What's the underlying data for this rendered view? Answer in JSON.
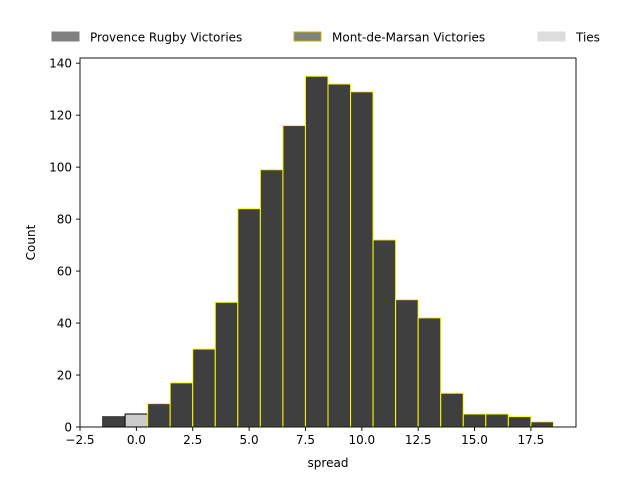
{
  "chart_data": {
    "type": "bar",
    "title": "",
    "xlabel": "spread",
    "ylabel": "Count",
    "xlim": [
      -2.5,
      19.5
    ],
    "ylim": [
      0,
      142
    ],
    "xticks": [
      -2.5,
      0.0,
      2.5,
      5.0,
      7.5,
      10.0,
      12.5,
      15.0,
      17.5
    ],
    "xtick_labels": [
      "−2.5",
      "0.0",
      "2.5",
      "5.0",
      "7.5",
      "10.0",
      "12.5",
      "15.0",
      "17.5"
    ],
    "yticks": [
      0,
      20,
      40,
      60,
      80,
      100,
      120,
      140
    ],
    "ytick_labels": [
      "0",
      "20",
      "40",
      "60",
      "80",
      "100",
      "120",
      "140"
    ],
    "bin_width": 1,
    "grid": false,
    "legend_position": "top (above plot)",
    "series": [
      {
        "name": "Provence Rugby Victories",
        "fill": "#3f3f3f",
        "edge": "#444444",
        "legend_fill": "#808080",
        "legend_edge": "#808080",
        "bins": [
          {
            "start": -1.5,
            "count": 4
          }
        ]
      },
      {
        "name": "Ties",
        "fill": "#cccccc",
        "edge": "#000000",
        "legend_fill": "#dddddd",
        "legend_edge": "#dddddd",
        "bins": [
          {
            "start": -0.5,
            "count": 5
          }
        ]
      },
      {
        "name": "Mont-de-Marsan Victories",
        "fill": "#3f3f3f",
        "edge": "#ffff00",
        "legend_fill": "#808080",
        "legend_edge": "#b8b800",
        "bins": [
          {
            "start": 0.5,
            "count": 9
          },
          {
            "start": 1.5,
            "count": 17
          },
          {
            "start": 2.5,
            "count": 30
          },
          {
            "start": 3.5,
            "count": 48
          },
          {
            "start": 4.5,
            "count": 84
          },
          {
            "start": 5.5,
            "count": 99
          },
          {
            "start": 6.5,
            "count": 116
          },
          {
            "start": 7.5,
            "count": 135
          },
          {
            "start": 8.5,
            "count": 132
          },
          {
            "start": 9.5,
            "count": 129
          },
          {
            "start": 10.5,
            "count": 72
          },
          {
            "start": 11.5,
            "count": 49
          },
          {
            "start": 12.5,
            "count": 42
          },
          {
            "start": 13.5,
            "count": 13
          },
          {
            "start": 14.5,
            "count": 5
          },
          {
            "start": 15.5,
            "count": 5
          },
          {
            "start": 16.5,
            "count": 4
          },
          {
            "start": 17.5,
            "count": 2
          }
        ]
      }
    ],
    "legend_order": [
      "Provence Rugby Victories",
      "Mont-de-Marsan Victories",
      "Ties"
    ]
  }
}
